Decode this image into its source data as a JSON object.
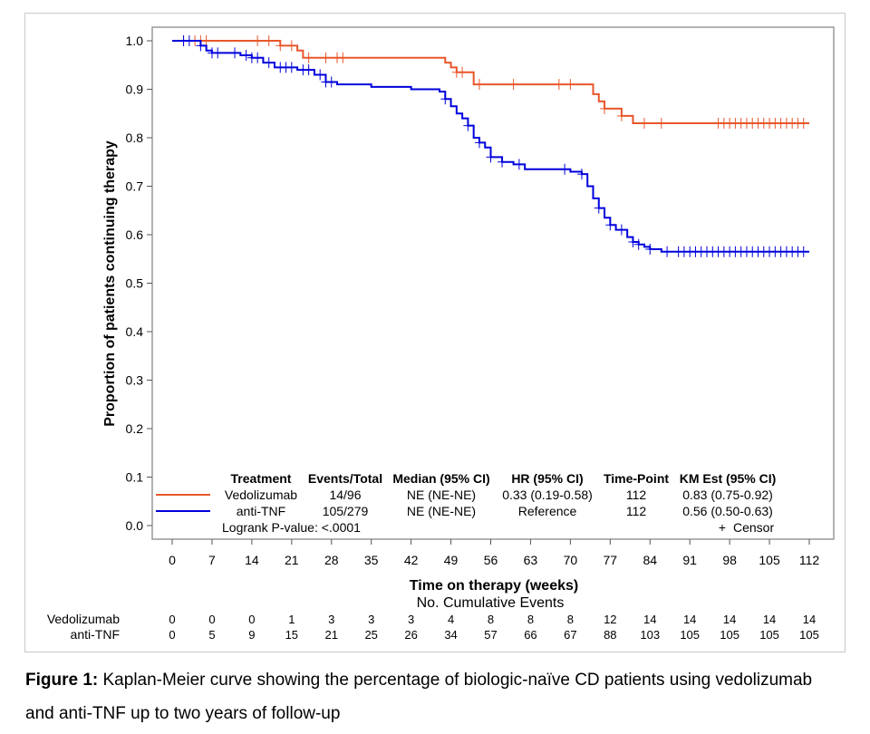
{
  "caption": {
    "label": "Figure 1:",
    "text": " Kaplan-Meier curve showing the percentage of biologic-naïve CD patients using vedolizumab and anti-TNF up to two years of follow-up"
  },
  "chart_data": {
    "type": "line",
    "step": true,
    "ylabel": "Proportion of patients continuing therapy",
    "xlabel": "Time on therapy (weeks)",
    "xlim": [
      0,
      112
    ],
    "ylim": [
      0,
      1.0
    ],
    "x_ticks": [
      0,
      7,
      14,
      21,
      28,
      35,
      42,
      49,
      56,
      63,
      70,
      77,
      84,
      91,
      98,
      105,
      112
    ],
    "y_ticks": [
      "0.0",
      "0.1",
      "0.2",
      "0.3",
      "0.4",
      "0.5",
      "0.6",
      "0.7",
      "0.8",
      "0.9",
      "1.0"
    ],
    "grid": false,
    "colors": {
      "Vedolizumab": "#e8562a",
      "anti-TNF": "#0000dd"
    },
    "series": [
      {
        "name": "Vedolizumab",
        "steps": [
          [
            0,
            1.0
          ],
          [
            19,
            0.99
          ],
          [
            22,
            0.98
          ],
          [
            23,
            0.965
          ],
          [
            48,
            0.955
          ],
          [
            49,
            0.945
          ],
          [
            50,
            0.935
          ],
          [
            53,
            0.91
          ],
          [
            74,
            0.89
          ],
          [
            75,
            0.875
          ],
          [
            76,
            0.86
          ],
          [
            79,
            0.845
          ],
          [
            81,
            0.83
          ],
          [
            112,
            0.83
          ]
        ],
        "censor_x": [
          2,
          4,
          5,
          6,
          15,
          17,
          19,
          21,
          24,
          27,
          29,
          30,
          50,
          51,
          54,
          60,
          68,
          70,
          76,
          79,
          83,
          86,
          96,
          97,
          98,
          99,
          100,
          101,
          102,
          103,
          104,
          105,
          106,
          107,
          108,
          109,
          110,
          111
        ]
      },
      {
        "name": "anti-TNF",
        "steps": [
          [
            0,
            1.0
          ],
          [
            5,
            0.99
          ],
          [
            6,
            0.98
          ],
          [
            7,
            0.975
          ],
          [
            12,
            0.97
          ],
          [
            14,
            0.965
          ],
          [
            16,
            0.955
          ],
          [
            18,
            0.945
          ],
          [
            22,
            0.94
          ],
          [
            25,
            0.93
          ],
          [
            27,
            0.915
          ],
          [
            29,
            0.91
          ],
          [
            35,
            0.905
          ],
          [
            42,
            0.9
          ],
          [
            47,
            0.895
          ],
          [
            48,
            0.88
          ],
          [
            49,
            0.865
          ],
          [
            50,
            0.85
          ],
          [
            51,
            0.84
          ],
          [
            52,
            0.825
          ],
          [
            53,
            0.8
          ],
          [
            54,
            0.79
          ],
          [
            55,
            0.78
          ],
          [
            56,
            0.76
          ],
          [
            58,
            0.75
          ],
          [
            60,
            0.745
          ],
          [
            62,
            0.735
          ],
          [
            70,
            0.73
          ],
          [
            72,
            0.725
          ],
          [
            73,
            0.7
          ],
          [
            74,
            0.675
          ],
          [
            75,
            0.655
          ],
          [
            76,
            0.635
          ],
          [
            77,
            0.62
          ],
          [
            78,
            0.61
          ],
          [
            80,
            0.595
          ],
          [
            81,
            0.585
          ],
          [
            82,
            0.58
          ],
          [
            83,
            0.575
          ],
          [
            84,
            0.57
          ],
          [
            86,
            0.565
          ],
          [
            112,
            0.565
          ]
        ],
        "censor_x": [
          2,
          3,
          5,
          7,
          8,
          11,
          13,
          14,
          15,
          17,
          19,
          20,
          21,
          23,
          24,
          26,
          27,
          28,
          48,
          52,
          54,
          56,
          58,
          61,
          69,
          72,
          75,
          77,
          79,
          81,
          82,
          84,
          87,
          89,
          90,
          91,
          92,
          93,
          94,
          95,
          96,
          97,
          98,
          99,
          100,
          101,
          102,
          103,
          104,
          105,
          106,
          107,
          108,
          109,
          110,
          111
        ]
      }
    ],
    "legend": {
      "headers": [
        "Treatment",
        "Events/Total",
        "Median (95% CI)",
        "HR (95% CI)",
        "Time-Point",
        "KM Est (95% CI)"
      ],
      "rows": [
        [
          "Vedolizumab",
          "14/96",
          "NE (NE-NE)",
          "0.33 (0.19-0.58)",
          "112",
          "0.83 (0.75-0.92)"
        ],
        [
          "anti-TNF",
          "105/279",
          "NE (NE-NE)",
          "Reference",
          "112",
          "0.56 (0.50-0.63)"
        ]
      ],
      "logrank": "Logrank P-value: <.0001",
      "censor_label": "Censor",
      "censor_symbol": "+"
    },
    "risk_table": {
      "title": "No. Cumulative Events",
      "rows": [
        {
          "name": "Vedolizumab",
          "values": [
            "0",
            "0",
            "0",
            "1",
            "3",
            "3",
            "3",
            "4",
            "8",
            "8",
            "8",
            "12",
            "14",
            "14",
            "14",
            "14",
            "14"
          ]
        },
        {
          "name": "anti-TNF",
          "values": [
            "0",
            "5",
            "9",
            "15",
            "21",
            "25",
            "26",
            "34",
            "57",
            "66",
            "67",
            "88",
            "103",
            "105",
            "105",
            "105",
            "105"
          ]
        }
      ]
    }
  }
}
